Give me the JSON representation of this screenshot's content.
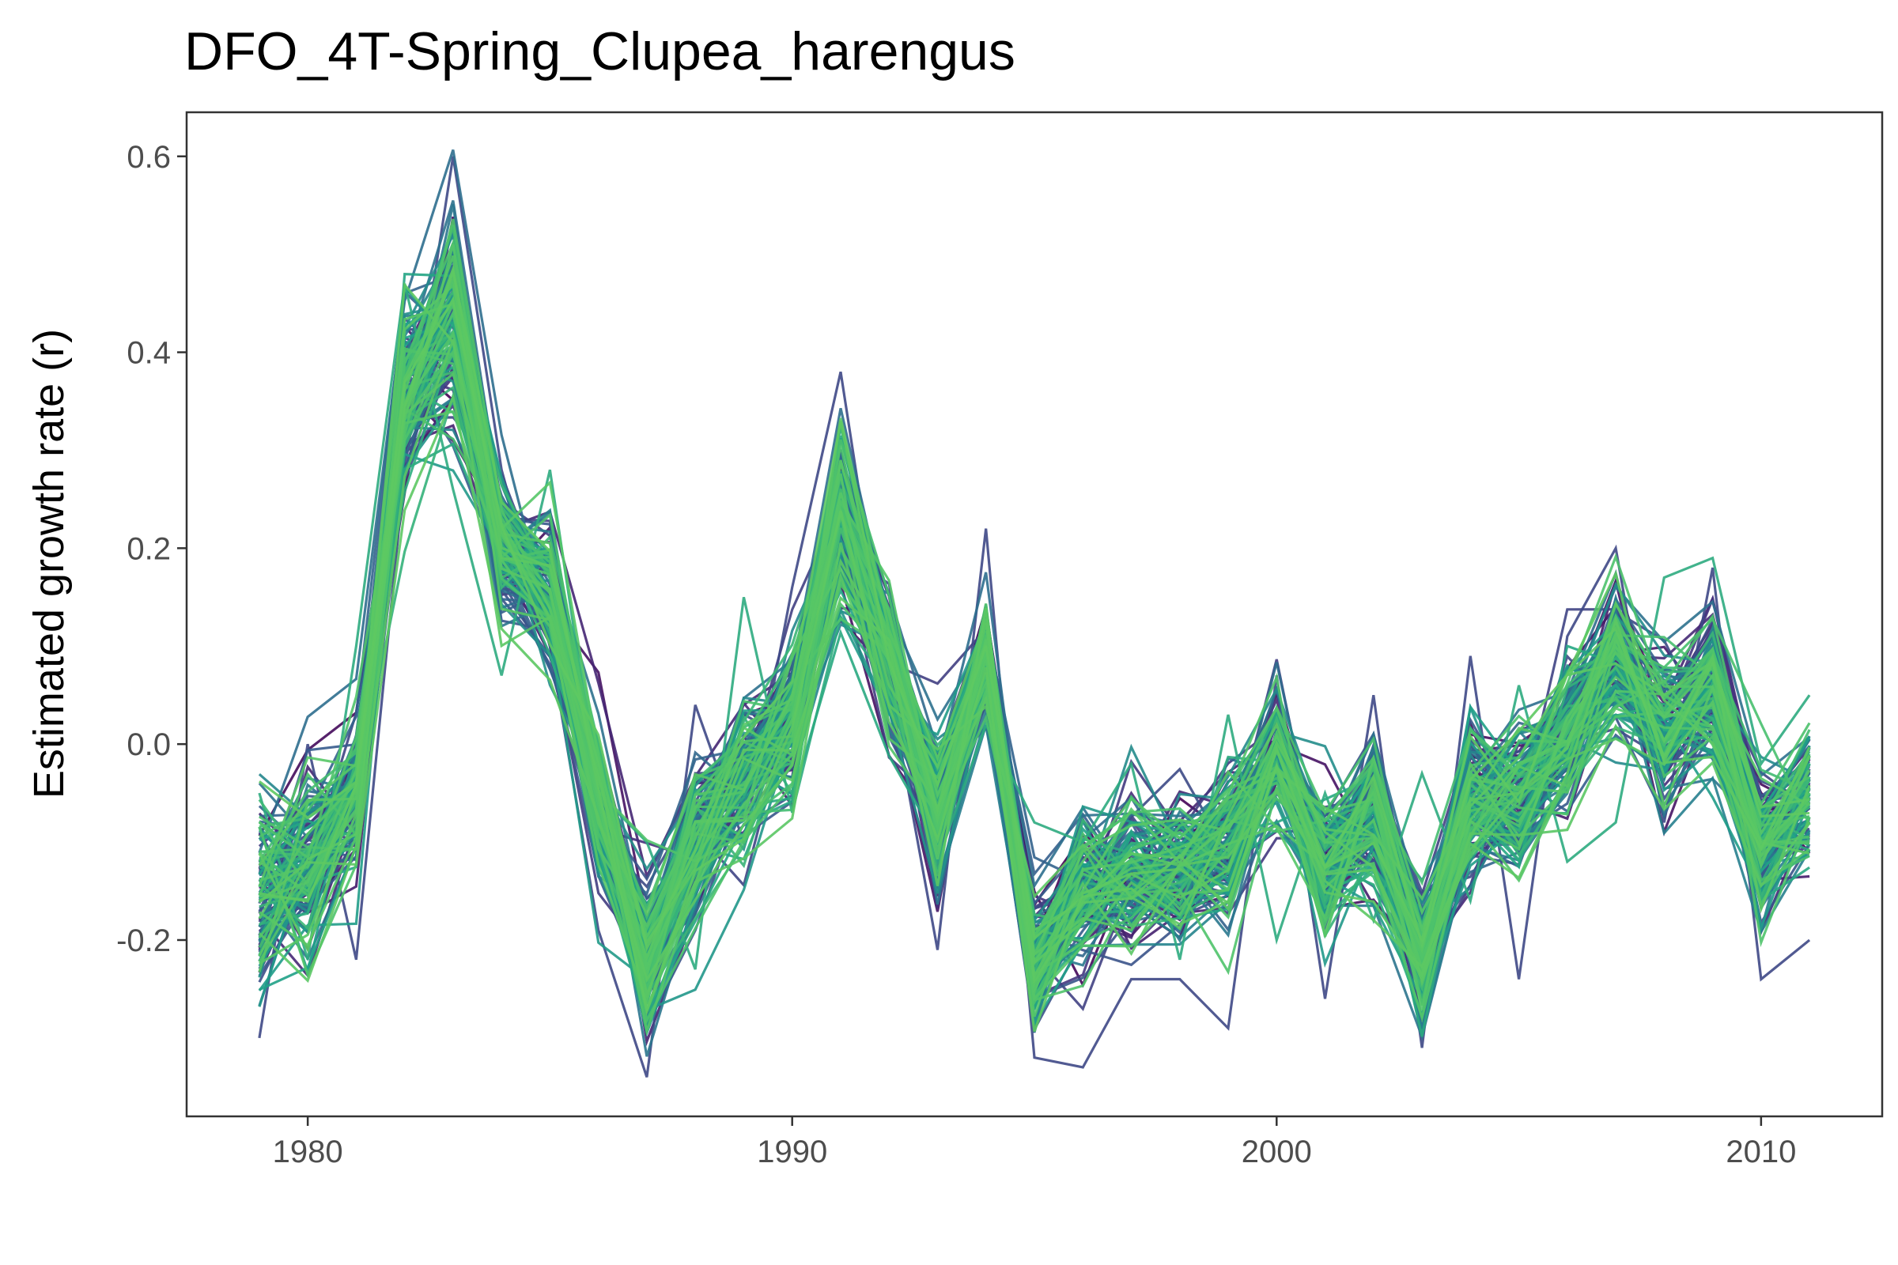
{
  "chart_data": {
    "type": "line",
    "title": "DFO_4T-Spring_Clupea_harengus",
    "xlabel": "",
    "ylabel": "Estimated growth rate (r)",
    "xlim": [
      1977.5,
      2012.5
    ],
    "ylim": [
      -0.38,
      0.645
    ],
    "x_ticks": [
      1980,
      1990,
      2000,
      2010
    ],
    "x_tick_labels": [
      "1980",
      "1990",
      "2000",
      "2010"
    ],
    "y_ticks": [
      -0.2,
      0.0,
      0.2,
      0.4,
      0.6
    ],
    "y_tick_labels": [
      "-0.2",
      "0.0",
      "0.2",
      "0.4",
      "0.6"
    ],
    "grid": false,
    "legend": "none",
    "colormap": [
      "#440154",
      "#46337e",
      "#365c8d",
      "#277f8e",
      "#1fa187",
      "#4ac16d",
      "#5ec962"
    ],
    "x": [
      1979,
      1980,
      1981,
      1982,
      1983,
      1984,
      1985,
      1986,
      1987,
      1988,
      1989,
      1990,
      1991,
      1992,
      1993,
      1994,
      1995,
      1996,
      1997,
      1998,
      1999,
      2000,
      2001,
      2002,
      2003,
      2004,
      2005,
      2006,
      2007,
      2008,
      2009,
      2010,
      2011
    ],
    "series_summary": {
      "description_values": "mean and spread of the ensemble of estimated growth-rate trajectories",
      "mean": [
        -0.15,
        -0.12,
        -0.05,
        0.36,
        0.43,
        0.2,
        0.16,
        -0.06,
        -0.22,
        -0.1,
        -0.04,
        0.02,
        0.23,
        0.09,
        -0.07,
        0.09,
        -0.22,
        -0.15,
        -0.13,
        -0.12,
        -0.1,
        -0.01,
        -0.13,
        -0.07,
        -0.22,
        -0.06,
        -0.05,
        0.01,
        0.08,
        0.02,
        0.06,
        -0.1,
        -0.06
      ],
      "spread": [
        0.07,
        0.06,
        0.05,
        0.06,
        0.07,
        0.05,
        0.05,
        0.05,
        0.05,
        0.05,
        0.05,
        0.05,
        0.06,
        0.05,
        0.05,
        0.04,
        0.04,
        0.05,
        0.05,
        0.05,
        0.05,
        0.04,
        0.05,
        0.05,
        0.04,
        0.05,
        0.05,
        0.05,
        0.05,
        0.05,
        0.05,
        0.05,
        0.05
      ],
      "extremes": [
        [
          -0.3,
          0.0,
          -0.22,
          0.28,
          0.6,
          0.28,
          0.1,
          -0.19,
          -0.34,
          0.04,
          -0.1,
          0.16,
          0.38,
          0.06,
          -0.21,
          0.22,
          -0.32,
          -0.33,
          -0.24,
          -0.24,
          -0.29,
          0.07,
          -0.26,
          0.05,
          -0.31,
          0.09,
          -0.24,
          0.11,
          0.2,
          -0.08,
          0.18,
          -0.24,
          -0.2
        ],
        [
          -0.05,
          -0.22,
          0.1,
          0.47,
          0.26,
          0.07,
          0.28,
          -0.05,
          -0.1,
          -0.23,
          0.15,
          -0.07,
          0.13,
          0.06,
          -0.12,
          0.02,
          -0.08,
          -0.1,
          -0.02,
          -0.22,
          0.03,
          -0.2,
          -0.05,
          -0.18,
          -0.03,
          -0.16,
          0.06,
          -0.12,
          -0.08,
          0.17,
          0.19,
          -0.02,
          0.05
        ]
      ]
    },
    "n_series": 140
  }
}
